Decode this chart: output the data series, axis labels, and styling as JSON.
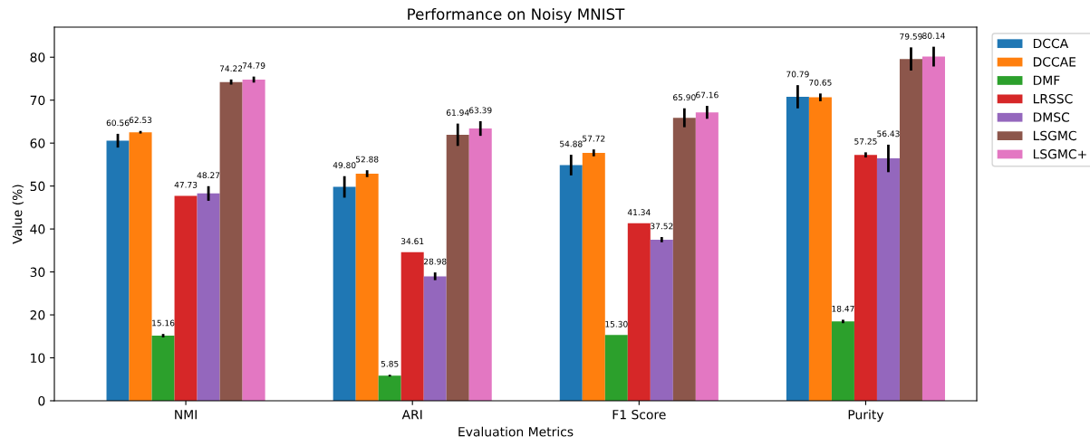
{
  "chart_data": {
    "type": "bar",
    "title": "Performance on Noisy MNIST",
    "xlabel": "Evaluation Metrics",
    "ylabel": "Value (%)",
    "categories": [
      "NMI",
      "ARI",
      "F1 Score",
      "Purity"
    ],
    "series": [
      {
        "name": "DCCA",
        "color": "#1f77b4",
        "values": [
          60.56,
          49.8,
          54.88,
          70.79
        ],
        "errors": [
          1.6,
          2.5,
          2.4,
          2.7
        ],
        "value_labels": [
          "60.56",
          "49.80",
          "54.88",
          "70.79"
        ]
      },
      {
        "name": "DCCAE",
        "color": "#ff7f0e",
        "values": [
          62.53,
          52.88,
          57.72,
          70.65
        ],
        "errors": [
          0.3,
          0.8,
          0.8,
          0.9
        ],
        "value_labels": [
          "62.53",
          "52.88",
          "57.72",
          "70.65"
        ]
      },
      {
        "name": "DMF",
        "color": "#2ca02c",
        "values": [
          15.16,
          5.85,
          15.3,
          18.47
        ],
        "errors": [
          0.4,
          0.2,
          null,
          0.4
        ],
        "value_labels": [
          "15.16",
          "5.85",
          "15.30",
          "18.47"
        ]
      },
      {
        "name": "LRSSC",
        "color": "#d62728",
        "values": [
          47.73,
          34.61,
          41.34,
          57.25
        ],
        "errors": [
          null,
          null,
          null,
          0.6
        ],
        "value_labels": [
          "47.73",
          "34.61",
          "41.34",
          "57.25"
        ]
      },
      {
        "name": "DMSC",
        "color": "#9467bd",
        "values": [
          48.27,
          28.98,
          37.52,
          56.43
        ],
        "errors": [
          1.7,
          0.9,
          0.6,
          3.2
        ],
        "value_labels": [
          "48.27",
          "28.98",
          "37.52",
          "56.43"
        ]
      },
      {
        "name": "LSGMC",
        "color": "#8c564b",
        "values": [
          74.22,
          61.94,
          65.9,
          79.59
        ],
        "errors": [
          0.6,
          2.6,
          2.2,
          2.7
        ],
        "value_labels": [
          "74.22",
          "61.94",
          "65.90",
          "79.59"
        ]
      },
      {
        "name": "LSGMC+",
        "color": "#e377c2",
        "values": [
          74.79,
          63.39,
          67.16,
          80.14
        ],
        "errors": [
          0.7,
          1.7,
          1.5,
          2.3
        ],
        "value_labels": [
          "74.79",
          "63.39",
          "67.16",
          "80.14"
        ]
      }
    ],
    "ylim": [
      0,
      87
    ],
    "yticks": [
      0,
      10,
      20,
      30,
      40,
      50,
      60,
      70,
      80
    ],
    "grid": false,
    "legend": "top right"
  }
}
